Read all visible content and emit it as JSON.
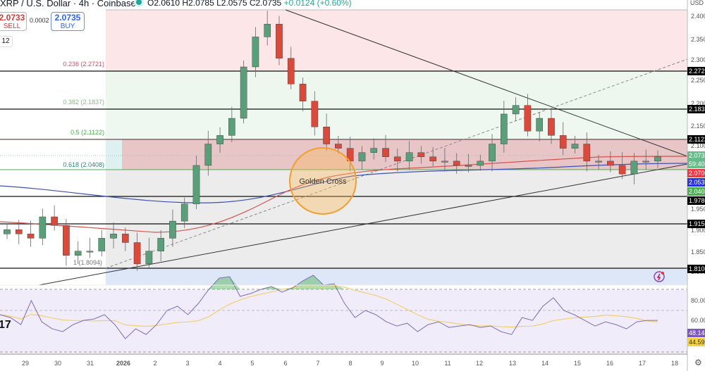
{
  "header": {
    "symbol": "XRP / U.S. Dollar · 4h · Coinbase",
    "open": "O2.0610",
    "high": "H2.0785",
    "low": "L2.0575",
    "close": "C2.0735",
    "change": "+0.0124 (+0.60%)"
  },
  "trade": {
    "sell_price": "2.0733",
    "sell_label": "SELL",
    "spread": "0.0002",
    "buy_price": "2.0735",
    "buy_label": "BUY",
    "quantity": "12"
  },
  "price_axis": {
    "currency": "USD",
    "ticks": [
      "2.400",
      "2.350",
      "2.300",
      "2.250",
      "2.200",
      "2.150",
      "2.100",
      "1.950",
      "1.900",
      "1.850",
      "1.800"
    ],
    "tags": [
      {
        "value": "2.2721",
        "color": "#000000"
      },
      {
        "value": "2.1837",
        "color": "#000000"
      },
      {
        "value": "2.1122",
        "color": "#000000"
      },
      {
        "value": "2.0735",
        "color": "#4caf50"
      },
      {
        "value": "59:40",
        "color": "#4caf50"
      },
      {
        "value": "2.0700",
        "color": "#f23645"
      },
      {
        "value": "2.0530",
        "color": "#2962ff"
      },
      {
        "value": "2.0408",
        "color": "#4caf50"
      },
      {
        "value": "1.9780",
        "color": "#000000"
      },
      {
        "value": "1.9150",
        "color": "#000000"
      },
      {
        "value": "1.8100",
        "color": "#000000"
      }
    ]
  },
  "rsi_axis": {
    "ticks": [
      "80.00",
      "60.00"
    ],
    "rsi_value": "48.14",
    "rsi_ma_value": "44.59"
  },
  "time_axis": {
    "labels": [
      "29",
      "30",
      "31",
      "2026",
      "2",
      "3",
      "4",
      "5",
      "6",
      "7",
      "8",
      "9",
      "10",
      "11",
      "12",
      "13",
      "14",
      "15",
      "16",
      "17",
      "18"
    ]
  },
  "annotations": {
    "golden_cross": "Golden Cross",
    "fib_levels": [
      {
        "label": "0.236 (2.2721)",
        "color": "#c2546a"
      },
      {
        "label": "0.382 (2.1837)",
        "color": "#88b888"
      },
      {
        "label": "0.5 (2.1122)",
        "color": "#4caf50"
      },
      {
        "label": "0.618 (2.0408)",
        "color": "#26897a"
      },
      {
        "label": "1 (1.8094)",
        "color": "#777777"
      }
    ]
  },
  "colors": {
    "up": "#5b9e7a",
    "down": "#d9493c",
    "ma_red": "#d9534f",
    "ma_blue": "#3f51b5",
    "rsi_line": "#7e57c2",
    "rsi_ma": "#f0d070"
  },
  "chart_data": {
    "type": "candlestick",
    "title": "XRP / U.S. Dollar · 4h · Coinbase",
    "xlabel": "",
    "ylabel": "USD",
    "ylim": [
      1.78,
      2.41
    ],
    "x_ticks": [
      "29",
      "30",
      "31",
      "2026",
      "2",
      "3",
      "4",
      "5",
      "6",
      "7",
      "8",
      "9",
      "10",
      "11",
      "12",
      "13",
      "14",
      "15",
      "16",
      "17",
      "18"
    ],
    "last_ohlc": {
      "open": 2.061,
      "high": 2.0785,
      "low": 2.0575,
      "close": 2.0735,
      "change": 0.0124,
      "change_pct": 0.6
    },
    "horizontal_levels": [
      2.2721,
      2.1837,
      2.1122,
      2.0408,
      1.978,
      1.915,
      1.81
    ],
    "fibonacci": [
      {
        "ratio": 0.236,
        "price": 2.2721
      },
      {
        "ratio": 0.382,
        "price": 2.1837
      },
      {
        "ratio": 0.5,
        "price": 2.1122
      },
      {
        "ratio": 0.618,
        "price": 2.0408
      },
      {
        "ratio": 1,
        "price": 1.8094
      }
    ],
    "moving_averages": [
      {
        "name": "MA red",
        "last": 2.07
      },
      {
        "name": "MA blue",
        "last": 2.053
      }
    ],
    "approx_closes": [
      1.9,
      1.89,
      1.88,
      1.93,
      1.91,
      1.84,
      1.85,
      1.85,
      1.88,
      1.89,
      1.87,
      1.82,
      1.85,
      1.88,
      1.92,
      1.96,
      2.05,
      2.1,
      2.12,
      2.16,
      2.28,
      2.35,
      2.38,
      2.3,
      2.24,
      2.2,
      2.14,
      2.1,
      2.09,
      2.06,
      2.08,
      2.09,
      2.07,
      2.06,
      2.08,
      2.07,
      2.06,
      2.06,
      2.05,
      2.05,
      2.06,
      2.1,
      2.17,
      2.19,
      2.13,
      2.16,
      2.12,
      2.09,
      2.1,
      2.06,
      2.06,
      2.05,
      2.03,
      2.06,
      2.06,
      2.07
    ],
    "peak": {
      "date": "6",
      "price": 2.41
    },
    "low": {
      "date": "31",
      "price": 1.8094
    },
    "rsi": {
      "ylim": [
        20,
        100
      ],
      "overbought": 70,
      "oversold": 30,
      "mid": 50,
      "last": 48.14,
      "ma_last": 44.59,
      "approx_values": [
        52,
        50,
        45,
        62,
        47,
        42,
        40,
        45,
        48,
        49,
        52,
        45,
        35,
        42,
        38,
        45,
        55,
        58,
        52,
        60,
        70,
        78,
        79,
        65,
        67,
        70,
        72,
        68,
        71,
        76,
        80,
        73,
        74,
        60,
        50,
        55,
        52,
        47,
        44,
        46,
        40,
        45,
        47,
        43,
        44,
        45,
        43,
        44,
        40,
        38,
        50,
        48,
        58,
        64,
        55,
        52,
        48,
        44,
        47,
        45,
        42,
        47,
        48,
        48
      ]
    },
    "annotations": [
      "Golden Cross"
    ]
  }
}
